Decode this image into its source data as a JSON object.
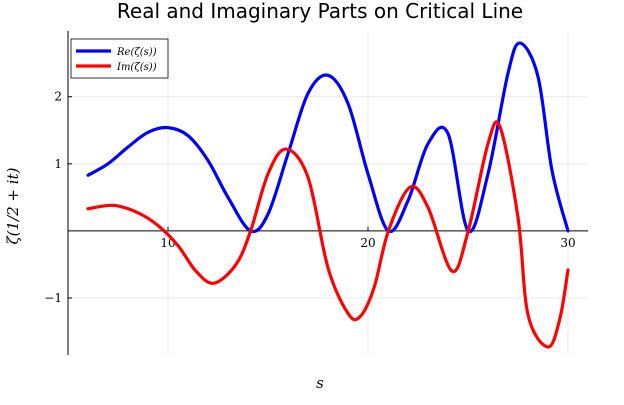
{
  "chart_data": {
    "type": "line",
    "title": "Real and Imaginary Parts on Critical Line",
    "xlabel": "s",
    "ylabel": "ζ(1/2 + it)",
    "xlim": [
      5,
      31
    ],
    "ylim": [
      -1.85,
      2.98
    ],
    "xticks": [
      10,
      20,
      30
    ],
    "xtick_labels": [
      "10",
      "20",
      "30"
    ],
    "yticks": [
      -1,
      1,
      2
    ],
    "ytick_labels": [
      "−1",
      "1",
      "2"
    ],
    "grid": true,
    "legend_position": "top-left",
    "series": [
      {
        "name": "Re(ζ(s))",
        "color": "#0000ff",
        "x": [
          6,
          7,
          8,
          9,
          10,
          11,
          12,
          13,
          14.13,
          15,
          16,
          17,
          18,
          19,
          20,
          21.02,
          22,
          23,
          24,
          25.01,
          26,
          27,
          27.6,
          28.5,
          29.2,
          30
        ],
        "y": [
          0.83,
          1.0,
          1.25,
          1.47,
          1.54,
          1.42,
          1.05,
          0.5,
          0.0,
          0.25,
          1.15,
          2.05,
          2.32,
          1.9,
          0.85,
          0.0,
          0.45,
          1.3,
          1.45,
          0.0,
          0.85,
          2.35,
          2.8,
          2.3,
          0.9,
          0.0
        ]
      },
      {
        "name": "Im(ζ(s))",
        "color": "#ff0000",
        "x": [
          6,
          7.3,
          8.5,
          9.5,
          10.5,
          11.4,
          12.3,
          13.4,
          14.13,
          15,
          15.9,
          17,
          18,
          19,
          19.6,
          20.3,
          21.02,
          22.1,
          23,
          24.2,
          25.01,
          26,
          26.6,
          27.5,
          28,
          29,
          29.6,
          30
        ],
        "y": [
          0.33,
          0.38,
          0.27,
          0.08,
          -0.22,
          -0.6,
          -0.78,
          -0.5,
          0.0,
          0.85,
          1.22,
          0.8,
          -0.55,
          -1.23,
          -1.28,
          -0.85,
          0.0,
          0.65,
          0.35,
          -0.6,
          0.0,
          1.3,
          1.55,
          0.2,
          -1.25,
          -1.73,
          -1.3,
          -0.58
        ]
      }
    ]
  }
}
